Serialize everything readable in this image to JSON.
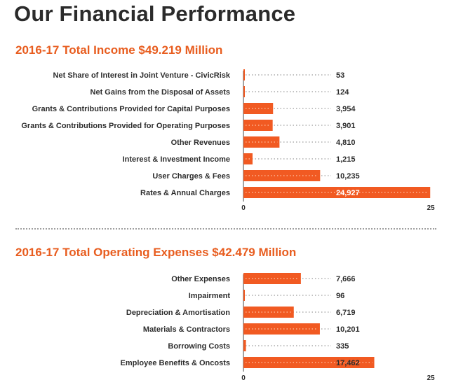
{
  "page": {
    "title": "Our Financial Performance"
  },
  "colors": {
    "bar": "#f15a22",
    "bar_dark": "#e04b16",
    "title": "#2b2b2b",
    "accent": "#e85d1f",
    "label": "#2d2d2d",
    "leader": "#9a9a9a"
  },
  "chart_data": [
    {
      "type": "bar",
      "orientation": "horizontal",
      "title": "2016-17 Total Income $49.219 Million",
      "categories": [
        "Net Share of Interest in Joint Venture - CivicRisk",
        "Net Gains from the Disposal of Assets",
        "Grants & Contributions Provided for Capital Purposes",
        "Grants & Contributions Provided for Operating Purposes",
        "Other Revenues",
        "Interest & Investment Income",
        "User Charges & Fees",
        "Rates & Annual Charges"
      ],
      "values": [
        53,
        124,
        3954,
        3901,
        4810,
        1215,
        10235,
        24927
      ],
      "value_labels": [
        "53",
        "124",
        "3,954",
        "3,901",
        "4,810",
        "1,215",
        "10,235",
        "24,927"
      ],
      "xlim": [
        0,
        25000
      ],
      "tick_labels": [
        "0",
        "25"
      ],
      "legend": "none"
    },
    {
      "type": "bar",
      "orientation": "horizontal",
      "title": "2016-17 Total Operating Expenses $42.479 Million",
      "categories": [
        "Other Expenses",
        "Impairment",
        "Depreciation & Amortisation",
        "Materials & Contractors",
        "Borrowing Costs",
        "Employee Benefits & Oncosts"
      ],
      "values": [
        7666,
        96,
        6719,
        10201,
        335,
        17462
      ],
      "value_labels": [
        "7,666",
        "96",
        "6,719",
        "10,201",
        "335",
        "17,462"
      ],
      "xlim": [
        0,
        25000
      ],
      "tick_labels": [
        "0",
        "25"
      ],
      "legend": "none"
    }
  ]
}
